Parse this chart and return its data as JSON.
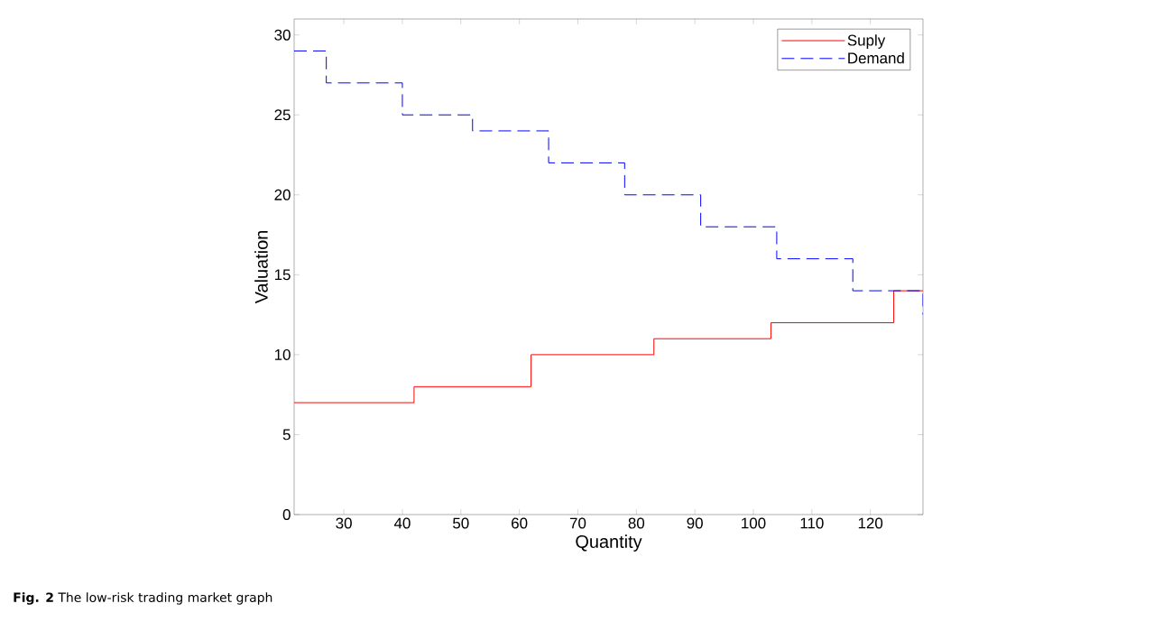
{
  "chart_data": {
    "type": "step",
    "xlabel": "Quantity",
    "ylabel": "Valuation",
    "annotations": [
      "**Fig. 2** The low-risk trading market graph"
    ],
    "series": [
      {
        "name": "Suply",
        "color": "#ff0000",
        "line_style": "solid",
        "x": [
          21.5,
          42,
          62,
          83,
          103,
          124,
          129
        ],
        "values": [
          7,
          8,
          10,
          11,
          12,
          14,
          14
        ]
      },
      {
        "name": "Demand",
        "color": "#0000ff",
        "line_style": "dashed",
        "x": [
          21.5,
          27,
          40,
          52,
          65,
          78,
          91,
          104,
          117,
          129
        ],
        "values": [
          29,
          27,
          25,
          24,
          22,
          20,
          18,
          16,
          14,
          12.5
        ]
      }
    ],
    "xlim": [
      21.5,
      129
    ],
    "ylim": [
      0,
      31
    ],
    "xticks": [
      30,
      40,
      50,
      60,
      70,
      80,
      90,
      100,
      110,
      120
    ],
    "yticks": [
      0,
      5,
      10,
      15,
      20,
      25,
      30
    ],
    "grid": false,
    "legend": "top right",
    "marker": "none"
  }
}
